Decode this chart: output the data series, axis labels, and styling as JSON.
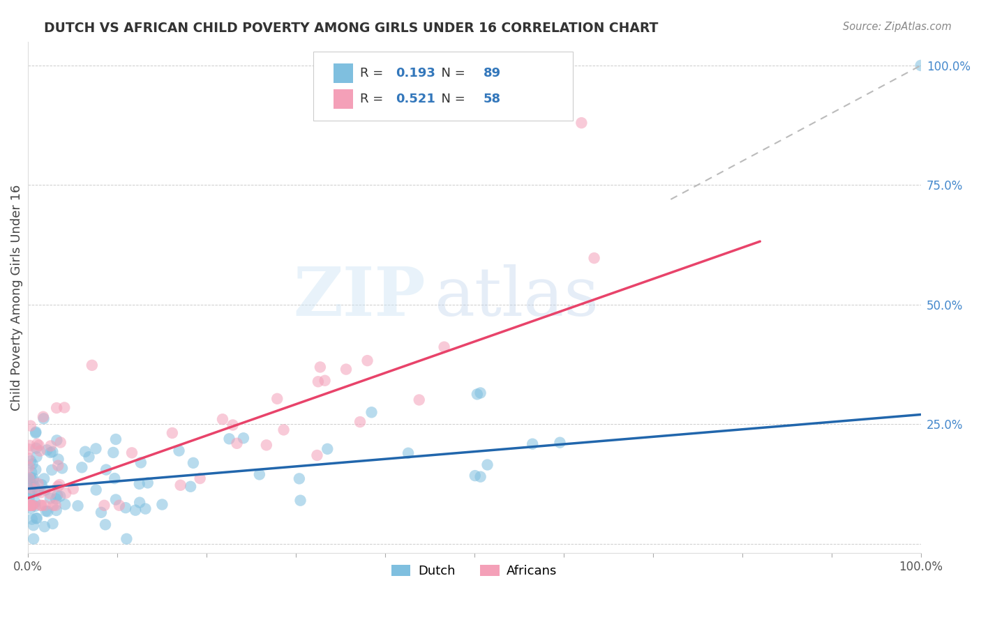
{
  "title": "DUTCH VS AFRICAN CHILD POVERTY AMONG GIRLS UNDER 16 CORRELATION CHART",
  "source": "Source: ZipAtlas.com",
  "ylabel": "Child Poverty Among Girls Under 16",
  "xlim": [
    0.0,
    1.0
  ],
  "ylim": [
    -0.02,
    1.05
  ],
  "dutch_R": 0.193,
  "dutch_N": 89,
  "african_R": 0.521,
  "african_N": 58,
  "dutch_color": "#7fbfdf",
  "african_color": "#f4a0b8",
  "dutch_line_color": "#2166ac",
  "african_line_color": "#e8436a",
  "watermark_zip_color": "#c8dff0",
  "watermark_atlas_color": "#b8cce8",
  "background_color": "#ffffff",
  "dutch_line_x0": 0.0,
  "dutch_line_y0": 0.115,
  "dutch_line_x1": 1.0,
  "dutch_line_y1": 0.27,
  "african_line_x0": 0.0,
  "african_line_y0": 0.095,
  "african_line_x1": 1.0,
  "african_line_y1": 0.75,
  "dash_line_x0": 0.72,
  "dash_line_y0": 0.72,
  "dash_line_x1": 1.0,
  "dash_line_y1": 1.0,
  "right_ytick_labels": [
    "",
    "25.0%",
    "50.0%",
    "75.0%",
    "100.0%"
  ],
  "right_ytick_color": "#4488cc",
  "legend_label_color": "#333333",
  "legend_R_color": "#3377bb",
  "legend_N_color": "#3377bb"
}
